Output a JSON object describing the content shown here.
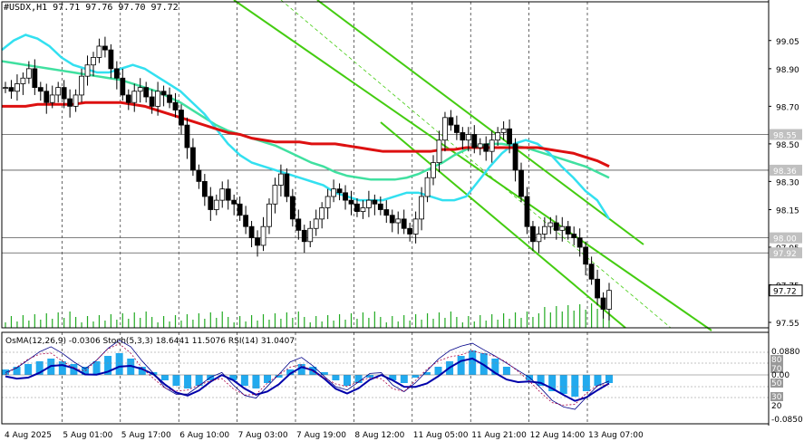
{
  "header": {
    "symbol_line": "#USDX,H1  97.71 97.76 97.70 97.72"
  },
  "indicator_header": "OsMA(12,26,9) -0.0306  Stoch(5,3,3) 18.6441 11.5076  RSI(14) 31.0407",
  "colors": {
    "bull": "#000000",
    "bear": "#000000",
    "ma_fast": "#33e0f0",
    "ma_mid": "#40e0a0",
    "ma_slow": "#dd1010",
    "channel": "#44cc11",
    "osma": "#22aaee",
    "macd_line": "#0000aa",
    "stoch": "#000088",
    "rsi": "#aa0044",
    "hline": "#555555",
    "volume": "#22aa22"
  },
  "chart_data": [
    {
      "type": "candlestick",
      "symbol": "#USDX",
      "timeframe": "H1",
      "ylim": [
        97.55,
        99.15
      ],
      "yticks": [
        "99.05",
        "98.90",
        "98.70",
        "98.50",
        "98.30",
        "98.15",
        "97.95",
        "97.75",
        "97.55"
      ],
      "xticks": [
        "4 Aug 2025",
        "5 Aug 01:00",
        "5 Aug 17:00",
        "6 Aug 10:00",
        "7 Aug 03:00",
        "7 Aug 19:00",
        "8 Aug 12:00",
        "11 Aug 05:00",
        "11 Aug 21:00",
        "12 Aug 14:00",
        "13 Aug 07:00"
      ],
      "levels": [
        {
          "label": "98.55",
          "value": 98.55
        },
        {
          "label": "98.36",
          "value": 98.36
        },
        {
          "label": "98.00",
          "value": 98.0
        },
        {
          "label": "97.92",
          "value": 97.92
        }
      ],
      "last_price": "97.72",
      "last_value": 97.72,
      "close_series": [
        98.8,
        98.78,
        98.82,
        98.85,
        98.9,
        98.8,
        98.78,
        98.72,
        98.76,
        98.8,
        98.74,
        98.7,
        98.76,
        98.86,
        98.92,
        98.96,
        99.02,
        99.0,
        98.9,
        98.85,
        98.76,
        98.72,
        98.78,
        98.8,
        98.75,
        98.7,
        98.78,
        98.76,
        98.72,
        98.68,
        98.6,
        98.48,
        98.36,
        98.3,
        98.22,
        98.15,
        98.2,
        98.26,
        98.2,
        98.18,
        98.12,
        98.06,
        98.0,
        97.96,
        98.06,
        98.18,
        98.28,
        98.34,
        98.22,
        98.1,
        98.04,
        97.98,
        98.05,
        98.1,
        98.16,
        98.22,
        98.26,
        98.24,
        98.2,
        98.18,
        98.14,
        98.16,
        98.2,
        98.18,
        98.15,
        98.12,
        98.08,
        98.1,
        98.05,
        98.02,
        98.1,
        98.22,
        98.32,
        98.4,
        98.52,
        98.64,
        98.6,
        98.56,
        98.52,
        98.55,
        98.48,
        98.5,
        98.46,
        98.52,
        98.56,
        98.58,
        98.5,
        98.36,
        98.22,
        98.06,
        97.98,
        98.02,
        98.06,
        98.08,
        98.04,
        98.06,
        98.02,
        98.0,
        97.95,
        97.86,
        97.78,
        97.68,
        97.62,
        97.72
      ],
      "ma_fast": [
        99.0,
        99.05,
        99.08,
        99.06,
        99.02,
        98.96,
        98.92,
        98.9,
        98.88,
        98.88,
        98.9,
        98.92,
        98.9,
        98.86,
        98.82,
        98.78,
        98.72,
        98.66,
        98.58,
        98.5,
        98.44,
        98.4,
        98.38,
        98.36,
        98.34,
        98.32,
        98.3,
        98.28,
        98.24,
        98.22,
        98.2,
        98.2,
        98.2,
        98.22,
        98.24,
        98.24,
        98.22,
        98.2,
        98.2,
        98.22,
        98.3,
        98.38,
        98.45,
        98.5,
        98.52,
        98.5,
        98.45,
        98.38,
        98.32,
        98.25,
        98.2,
        98.1
      ],
      "ma_mid": [
        98.94,
        98.93,
        98.92,
        98.91,
        98.9,
        98.89,
        98.88,
        98.87,
        98.86,
        98.85,
        98.84,
        98.82,
        98.8,
        98.78,
        98.75,
        98.72,
        98.68,
        98.64,
        98.6,
        98.57,
        98.55,
        98.53,
        98.51,
        98.49,
        98.46,
        98.43,
        98.4,
        98.38,
        98.35,
        98.33,
        98.32,
        98.31,
        98.31,
        98.31,
        98.32,
        98.34,
        98.37,
        98.4,
        98.44,
        98.47,
        98.49,
        98.5,
        98.5,
        98.49,
        98.48,
        98.46,
        98.44,
        98.42,
        98.4,
        98.38,
        98.35,
        98.32
      ],
      "ma_slow": [
        98.7,
        98.7,
        98.7,
        98.71,
        98.71,
        98.71,
        98.71,
        98.72,
        98.72,
        98.72,
        98.72,
        98.71,
        98.7,
        98.68,
        98.66,
        98.64,
        98.62,
        98.6,
        98.58,
        98.56,
        98.55,
        98.53,
        98.52,
        98.51,
        98.51,
        98.51,
        98.5,
        98.5,
        98.5,
        98.49,
        98.48,
        98.47,
        98.46,
        98.46,
        98.46,
        98.46,
        98.46,
        98.47,
        98.47,
        98.48,
        98.48,
        98.48,
        98.48,
        98.48,
        98.48,
        98.48,
        98.47,
        98.46,
        98.45,
        98.43,
        98.41,
        98.38
      ]
    },
    {
      "type": "oscillator",
      "name": "OsMA(12,26,9) / Stoch(5,3,3) / RSI(14)",
      "right_labels": [
        "0.0880",
        "80",
        "70",
        "0.00",
        "50",
        "30",
        "20",
        "-0.0850"
      ],
      "osma": [
        0.02,
        0.03,
        0.04,
        0.05,
        0.06,
        0.05,
        0.04,
        0.03,
        0.05,
        0.07,
        0.08,
        0.06,
        0.03,
        0.01,
        -0.02,
        -0.04,
        -0.05,
        -0.04,
        -0.02,
        0.0,
        -0.02,
        -0.04,
        -0.05,
        -0.03,
        -0.01,
        0.02,
        0.04,
        0.03,
        0.01,
        -0.02,
        -0.04,
        -0.03,
        -0.01,
        0.0,
        -0.02,
        -0.03,
        -0.01,
        0.01,
        0.03,
        0.05,
        0.07,
        0.09,
        0.08,
        0.06,
        0.03,
        0.0,
        -0.02,
        -0.04,
        -0.06,
        -0.07,
        -0.08,
        -0.06,
        -0.04,
        -0.03
      ]
    }
  ]
}
